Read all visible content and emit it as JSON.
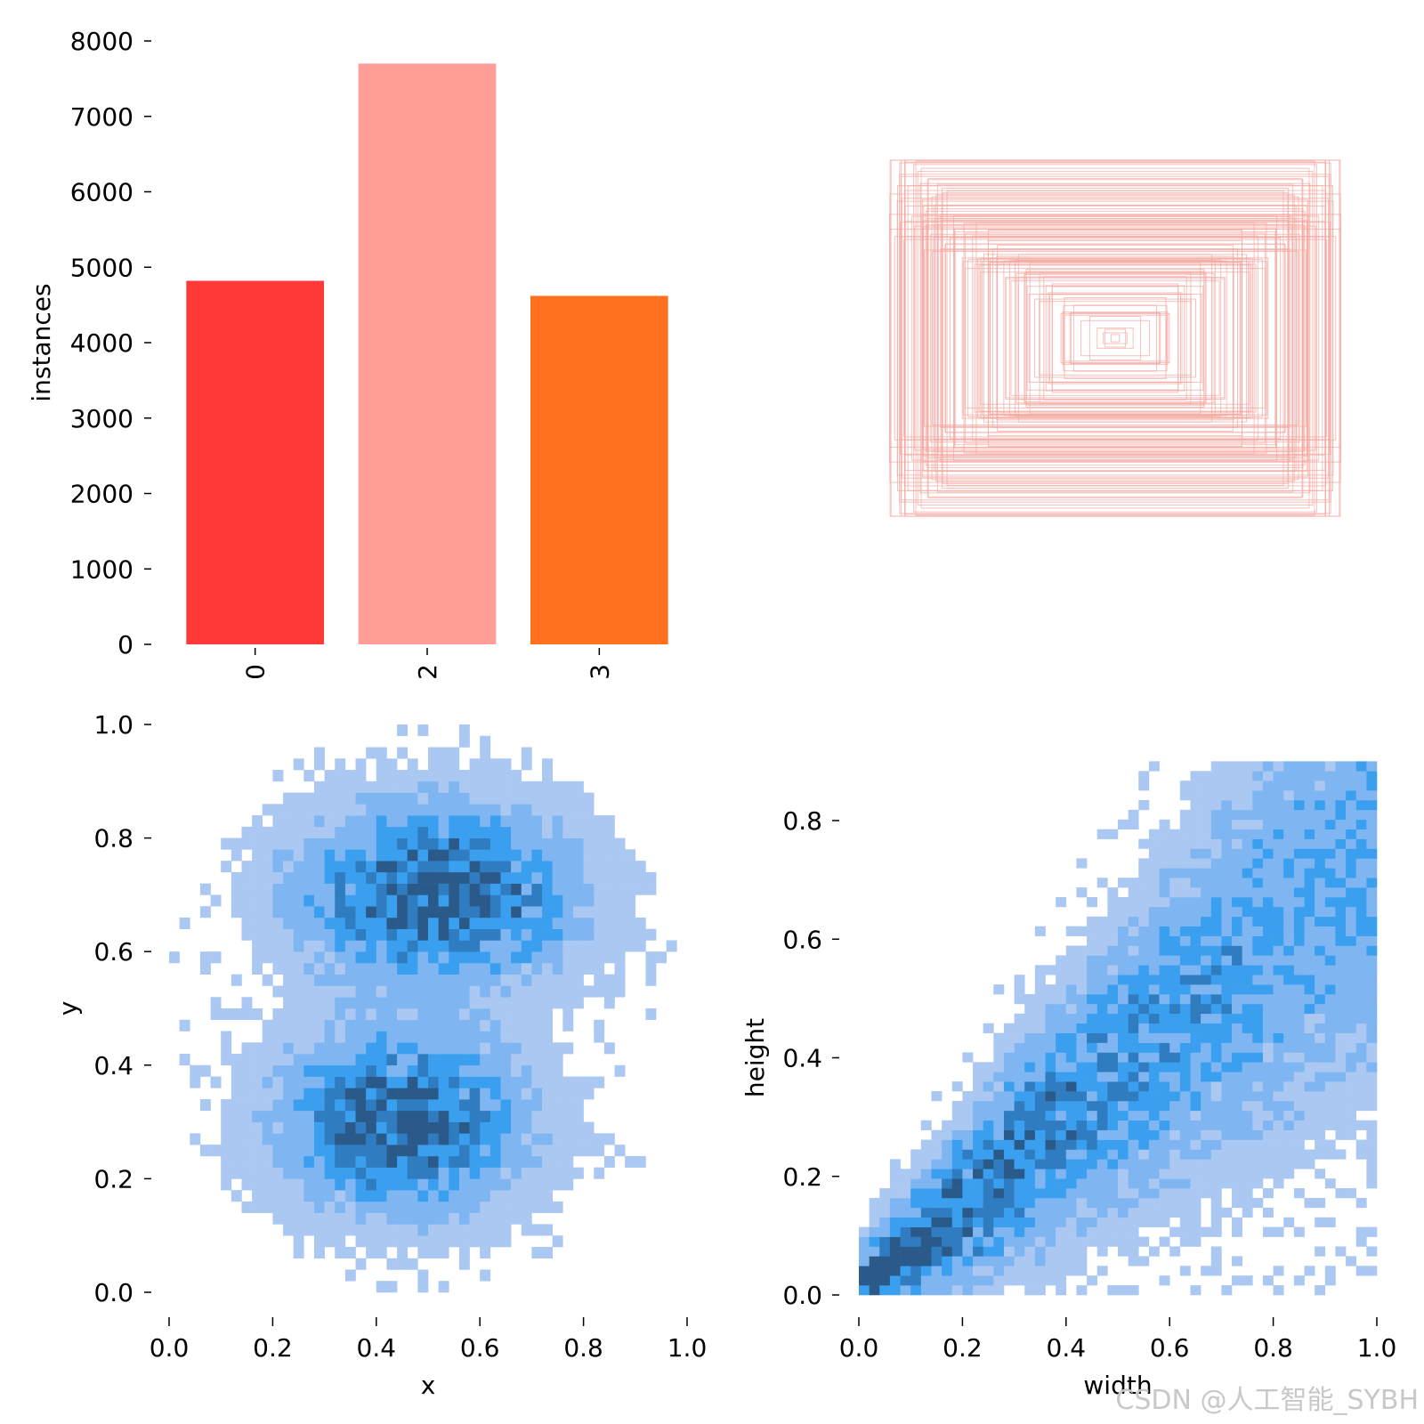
{
  "chart_data": [
    {
      "type": "bar",
      "categories": [
        "0",
        "2",
        "3"
      ],
      "values": [
        4820,
        7700,
        4620
      ],
      "colors": [
        "#ff3838",
        "#ff9d97",
        "#ff701f"
      ],
      "xlabel": "",
      "ylabel": "instances",
      "ylim": [
        0,
        8000
      ],
      "yticks": [
        0,
        1000,
        2000,
        3000,
        4000,
        5000,
        6000,
        7000,
        8000
      ],
      "ytick_labels": [
        "0",
        "1000",
        "2000",
        "3000",
        "4000",
        "5000",
        "6000",
        "7000",
        "8000"
      ],
      "grid": false
    },
    {
      "type": "scatter",
      "description": "overlaid bounding boxes centered on image",
      "axes_visible": false,
      "box_color": "#f4a6a0"
    },
    {
      "type": "heatmap",
      "xlabel": "x",
      "ylabel": "y",
      "xlim": [
        0,
        1
      ],
      "ylim": [
        0,
        1
      ],
      "xticks": [
        "0.0",
        "0.2",
        "0.4",
        "0.6",
        "0.8",
        "1.0"
      ],
      "yticks": [
        "0.0",
        "0.2",
        "0.4",
        "0.6",
        "0.8",
        "1.0"
      ],
      "color": "#3b9ff0",
      "clusters": [
        {
          "cx": 0.52,
          "cy": 0.7,
          "sx": 0.17,
          "sy": 0.1,
          "w": 1.0
        },
        {
          "cx": 0.45,
          "cy": 0.3,
          "sx": 0.15,
          "sy": 0.1,
          "w": 1.0
        }
      ]
    },
    {
      "type": "heatmap",
      "xlabel": "width",
      "ylabel": "height",
      "xlim": [
        0,
        1
      ],
      "ylim": [
        0,
        0.9
      ],
      "xticks": [
        "0.0",
        "0.2",
        "0.4",
        "0.6",
        "0.8",
        "1.0"
      ],
      "yticks": [
        "0.0",
        "0.2",
        "0.4",
        "0.6",
        "0.8"
      ],
      "color": "#3b9ff0",
      "trend": "height ≈ 0.75 × width"
    }
  ],
  "watermark": "CSDN @人工智能_SYBH"
}
